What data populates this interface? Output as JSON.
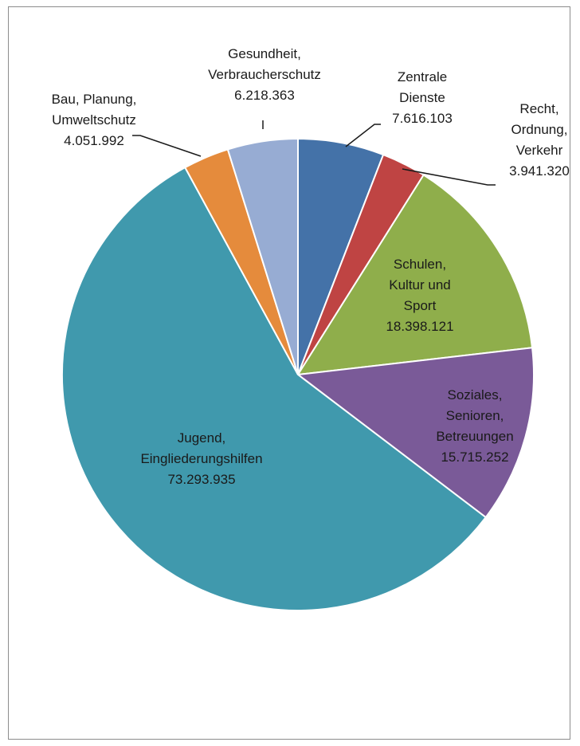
{
  "chart_data": {
    "type": "pie",
    "title": "",
    "start_angle_deg": 0,
    "direction": "clockwise",
    "slices": [
      {
        "label": [
          "Zentrale",
          "Dienste"
        ],
        "value": 7616103,
        "display": "7.616.103",
        "color": "#4472a8"
      },
      {
        "label": [
          "Recht,",
          "Ordnung,",
          "Verkehr"
        ],
        "value": 3941320,
        "display": "3.941.320",
        "color": "#bf4443"
      },
      {
        "label": [
          "Schulen,",
          "Kultur und",
          "Sport"
        ],
        "value": 18398121,
        "display": "18.398.121",
        "color": "#8fae4b"
      },
      {
        "label": [
          "Soziales,",
          "Senioren,",
          "Betreuungen"
        ],
        "value": 15715252,
        "display": "15.715.252",
        "color": "#7a5a98"
      },
      {
        "label": [
          "Jugend,",
          "Eingliederungshilfen"
        ],
        "value": 73293935,
        "display": "73.293.935",
        "color": "#4099ad"
      },
      {
        "label": [
          "Bau, Planung,",
          "Umweltschutz"
        ],
        "value": 4051992,
        "display": "4.051.992",
        "color": "#e58b3c"
      },
      {
        "label": [
          "Gesundheit,",
          "Verbraucherschutz"
        ],
        "value": 6218363,
        "display": "6.218.363",
        "color": "#97acd3"
      }
    ]
  }
}
